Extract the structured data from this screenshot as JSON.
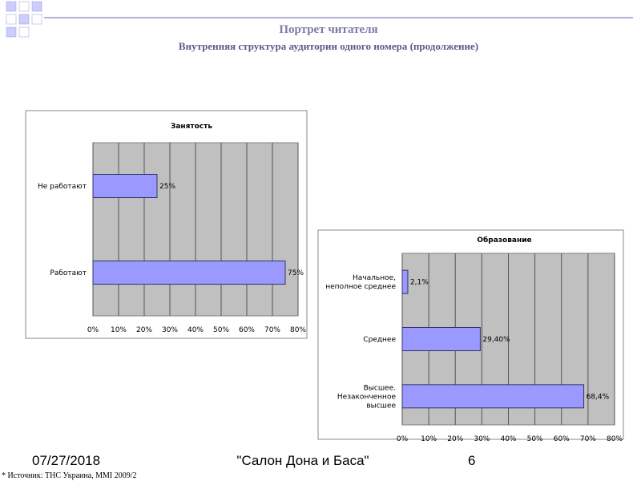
{
  "slide": {
    "title": "Портрет читателя",
    "subtitle": "Внутренняя структура аудитории одного номера (продолжение)",
    "date": "07/27/2018",
    "footer": "\"Салон Дона и Баса\"",
    "page": "6",
    "source": "* Источник: ТНС Украина, MMI 2009/2"
  },
  "chart_data": [
    {
      "type": "hbar",
      "title": "Занятость",
      "categories": [
        "Не работают",
        "Работают"
      ],
      "values": [
        25,
        75
      ],
      "value_labels": [
        "25%",
        "75%"
      ],
      "color": "#9999ff",
      "xlim": [
        0,
        80
      ],
      "xticks": [
        {
          "value": 0,
          "label": "0%"
        },
        {
          "value": 10,
          "label": "10%"
        },
        {
          "value": 20,
          "label": "20%"
        },
        {
          "value": 30,
          "label": "30%"
        },
        {
          "value": 40,
          "label": "40%"
        },
        {
          "value": 50,
          "label": "50%"
        },
        {
          "value": 60,
          "label": "60%"
        },
        {
          "value": 70,
          "label": "70%"
        },
        {
          "value": 80,
          "label": "80%"
        }
      ],
      "grid": true
    },
    {
      "type": "hbar",
      "title": "Образование",
      "categories": [
        "Начальное,\nнеполное среднее",
        "Среднее",
        "Высшее.\nНезаконченное\nвысшее"
      ],
      "values": [
        2.1,
        29.4,
        68.4
      ],
      "value_labels": [
        "2,1%",
        "29,40%",
        "68,4%"
      ],
      "color": "#9999ff",
      "xlim": [
        0,
        80
      ],
      "xticks": [
        {
          "value": 0,
          "label": "0%"
        },
        {
          "value": 10,
          "label": "10%"
        },
        {
          "value": 20,
          "label": "20%"
        },
        {
          "value": 30,
          "label": "30%"
        },
        {
          "value": 40,
          "label": "40%"
        },
        {
          "value": 50,
          "label": "50%"
        },
        {
          "value": 60,
          "label": "60%"
        },
        {
          "value": 70,
          "label": "70%"
        },
        {
          "value": 80,
          "label": "80%"
        }
      ],
      "grid": true
    }
  ]
}
